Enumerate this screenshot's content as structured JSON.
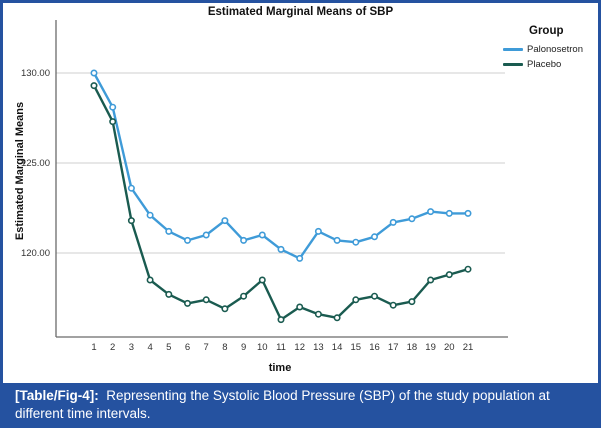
{
  "figure": {
    "border_color": "#2552A0",
    "caption": {
      "label": "[Table/Fig-4]:",
      "text": "Representing the Systolic Blood Pressure (SBP) of the study population at different time intervals.",
      "band_color": "#2552A0",
      "text_color": "#ffffff"
    }
  },
  "chart_data": {
    "type": "line",
    "title": "Estimated Marginal Means of SBP",
    "xlabel": "time",
    "ylabel": "Estimated Marginal Means",
    "legend_title": "Group",
    "legend_position": "top-right",
    "grid": "horizontal-only",
    "gridline_color": "#cfcfcf",
    "axis_color": "#6b6b6b",
    "x": [
      1,
      2,
      3,
      4,
      5,
      6,
      7,
      8,
      9,
      10,
      11,
      12,
      13,
      14,
      15,
      16,
      17,
      18,
      19,
      20,
      21
    ],
    "ytick_labels": [
      "130.00",
      "125.00",
      "120.00"
    ],
    "ytick_values": [
      130,
      125,
      120
    ],
    "ylim": [
      115.3,
      133.0
    ],
    "series": [
      {
        "name": "Palonosetron",
        "color": "#3F9BD8",
        "values": [
          130.0,
          128.1,
          123.6,
          122.1,
          121.2,
          120.7,
          121.0,
          121.8,
          120.7,
          121.0,
          120.2,
          119.7,
          121.2,
          120.7,
          120.6,
          120.9,
          121.7,
          121.9,
          122.3,
          122.2,
          122.2
        ]
      },
      {
        "name": "Placebo",
        "color": "#1A5B50",
        "values": [
          129.3,
          127.3,
          121.8,
          118.5,
          117.7,
          117.2,
          117.4,
          116.9,
          117.6,
          118.5,
          116.3,
          117.0,
          116.6,
          116.4,
          117.4,
          117.6,
          117.1,
          117.3,
          118.5,
          118.8,
          119.1
        ]
      }
    ]
  }
}
